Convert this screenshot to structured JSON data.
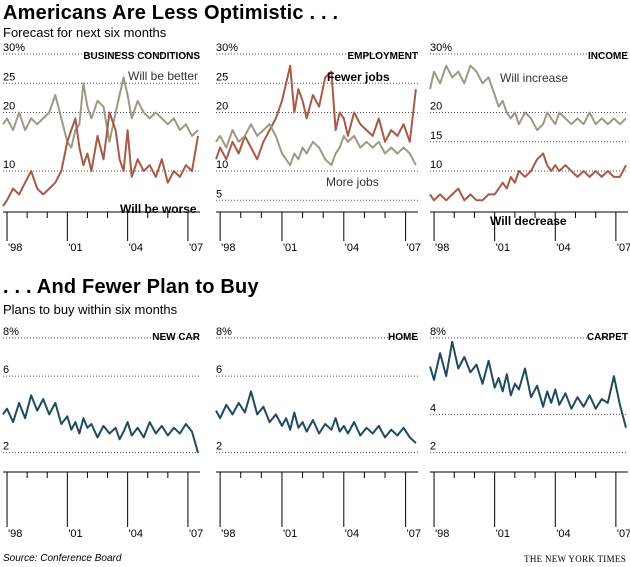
{
  "page": {
    "headline1": "Americans Are Less Optimistic . . .",
    "subhead1": "Forecast for next six months",
    "headline2": ". . . And Fewer Plan to Buy",
    "subhead2": "Plans to buy within six months",
    "source": "Source: Conference Board",
    "credit": "THE NEW YORK TIMES"
  },
  "colors": {
    "gray": "#9c9a86",
    "rust": "#a65a48",
    "teal": "#1e4c5e",
    "grid": "#555555"
  },
  "chart_data": [
    {
      "id": "business",
      "type": "line",
      "title": "BUSINESS CONDITIONS",
      "y_ticks": [
        "30%",
        "25",
        "20",
        "10"
      ],
      "y_tick_values": [
        30,
        25,
        20,
        10
      ],
      "ylim": [
        3,
        30
      ],
      "x_ticks": [
        "'98",
        "'01",
        "'04",
        "'07"
      ],
      "x_tick_values": [
        1998,
        2001,
        2004,
        2007
      ],
      "xlim": [
        1997.8,
        2007.6
      ],
      "series": [
        {
          "name": "Will be better",
          "color": "gray",
          "x": [
            1997.8,
            1998.0,
            1998.3,
            1998.6,
            1998.9,
            1999.2,
            1999.5,
            1999.8,
            2000.1,
            2000.4,
            2000.7,
            2001.0,
            2001.2,
            2001.4,
            2001.6,
            2001.8,
            2002.0,
            2002.2,
            2002.5,
            2002.8,
            2003.1,
            2003.4,
            2003.6,
            2003.8,
            2004.0,
            2004.2,
            2004.5,
            2004.8,
            2005.1,
            2005.4,
            2005.7,
            2006.0,
            2006.3,
            2006.6,
            2006.9,
            2007.2,
            2007.5
          ],
          "values": [
            18,
            19,
            17,
            20,
            17,
            19,
            18,
            19,
            20,
            23,
            19,
            15,
            14,
            17,
            18,
            25,
            21,
            19,
            22,
            21,
            15,
            20,
            23,
            26,
            23,
            19,
            22,
            20,
            19,
            20,
            19,
            18,
            19,
            17,
            18,
            16,
            17
          ]
        },
        {
          "name": "Will be worse",
          "color": "rust",
          "x": [
            1997.8,
            1998.0,
            1998.3,
            1998.6,
            1998.9,
            1999.2,
            1999.5,
            1999.8,
            2000.1,
            2000.4,
            2000.7,
            2001.0,
            2001.2,
            2001.4,
            2001.6,
            2001.8,
            2002.0,
            2002.2,
            2002.5,
            2002.8,
            2003.1,
            2003.4,
            2003.6,
            2003.8,
            2004.0,
            2004.2,
            2004.5,
            2004.8,
            2005.1,
            2005.4,
            2005.7,
            2006.0,
            2006.3,
            2006.6,
            2006.9,
            2007.2,
            2007.5
          ],
          "values": [
            4,
            5,
            7,
            6,
            8,
            10,
            7,
            6,
            7,
            8,
            10,
            15,
            17,
            19,
            14,
            11,
            13,
            10,
            16,
            12,
            20,
            17,
            12,
            10,
            17,
            9,
            12,
            10,
            11,
            9,
            12,
            8,
            10,
            9,
            11,
            10,
            16
          ]
        }
      ],
      "annotations": [
        {
          "text": "Will be better",
          "bold": false
        },
        {
          "text": "Will be worse",
          "bold": true
        }
      ]
    },
    {
      "id": "employment",
      "type": "line",
      "title": "EMPLOYMENT",
      "y_ticks": [
        "30%",
        "25",
        "20",
        "10",
        "5"
      ],
      "y_tick_values": [
        30,
        25,
        20,
        10,
        5
      ],
      "ylim": [
        3,
        30
      ],
      "x_ticks": [
        "'98",
        "'01",
        "'04",
        "'07"
      ],
      "x_tick_values": [
        1998,
        2001,
        2004,
        2007
      ],
      "xlim": [
        1997.8,
        2007.6
      ],
      "series": [
        {
          "name": "Fewer jobs",
          "color": "rust",
          "x": [
            1997.8,
            1998.0,
            1998.3,
            1998.6,
            1998.9,
            1999.2,
            1999.5,
            1999.8,
            2000.1,
            2000.4,
            2000.7,
            2001.0,
            2001.2,
            2001.4,
            2001.6,
            2001.8,
            2002.0,
            2002.2,
            2002.5,
            2002.8,
            2003.1,
            2003.4,
            2003.6,
            2003.8,
            2004.0,
            2004.2,
            2004.5,
            2004.8,
            2005.1,
            2005.4,
            2005.7,
            2006.0,
            2006.3,
            2006.6,
            2006.9,
            2007.2,
            2007.5
          ],
          "values": [
            12,
            14,
            12,
            15,
            13,
            16,
            14,
            12,
            15,
            17,
            19,
            22,
            25,
            28,
            20,
            24,
            22,
            19,
            23,
            21,
            26,
            27,
            17,
            20,
            19,
            16,
            20,
            18,
            17,
            16,
            19,
            15,
            17,
            16,
            18,
            15,
            24
          ]
        },
        {
          "name": "More jobs",
          "color": "gray",
          "x": [
            1997.8,
            1998.0,
            1998.3,
            1998.6,
            1998.9,
            1999.2,
            1999.5,
            1999.8,
            2000.1,
            2000.4,
            2000.7,
            2001.0,
            2001.2,
            2001.4,
            2001.6,
            2001.8,
            2002.0,
            2002.2,
            2002.5,
            2002.8,
            2003.1,
            2003.4,
            2003.6,
            2003.8,
            2004.0,
            2004.2,
            2004.5,
            2004.8,
            2005.1,
            2005.4,
            2005.7,
            2006.0,
            2006.3,
            2006.6,
            2006.9,
            2007.2,
            2007.5
          ],
          "values": [
            15,
            16,
            14,
            17,
            15,
            16,
            18,
            16,
            17,
            18,
            16,
            13,
            12,
            11,
            13,
            12,
            14,
            13,
            15,
            14,
            12,
            11,
            13,
            14,
            16,
            15,
            16,
            14,
            15,
            14,
            15,
            13,
            14,
            13,
            14,
            13,
            11
          ]
        }
      ],
      "annotations": [
        {
          "text": "Fewer jobs",
          "bold": true
        },
        {
          "text": "More jobs",
          "bold": false
        }
      ]
    },
    {
      "id": "income",
      "type": "line",
      "title": "INCOME",
      "y_ticks": [
        "30%",
        "20",
        "15",
        "10"
      ],
      "y_tick_values": [
        30,
        20,
        15,
        10
      ],
      "ylim": [
        3,
        30
      ],
      "x_ticks": [
        "'98",
        "'01",
        "'04",
        "'07"
      ],
      "x_tick_values": [
        1998,
        2001,
        2004,
        2007
      ],
      "xlim": [
        1997.8,
        2007.6
      ],
      "series": [
        {
          "name": "Will increase",
          "color": "gray",
          "x": [
            1997.8,
            1998.0,
            1998.3,
            1998.6,
            1998.9,
            1999.2,
            1999.5,
            1999.8,
            2000.1,
            2000.4,
            2000.7,
            2001.0,
            2001.2,
            2001.4,
            2001.6,
            2001.8,
            2002.0,
            2002.2,
            2002.5,
            2002.8,
            2003.1,
            2003.4,
            2003.6,
            2003.8,
            2004.0,
            2004.2,
            2004.5,
            2004.8,
            2005.1,
            2005.4,
            2005.7,
            2006.0,
            2006.3,
            2006.6,
            2006.9,
            2007.2,
            2007.5
          ],
          "values": [
            24,
            27,
            25,
            28,
            26,
            27,
            25,
            28,
            27,
            25,
            26,
            23,
            21,
            22,
            20,
            19,
            20,
            18,
            20,
            19,
            17,
            18,
            20,
            19,
            18,
            20,
            19,
            18,
            19,
            18,
            20,
            18,
            19,
            18,
            19,
            18,
            19
          ]
        },
        {
          "name": "Will decrease",
          "color": "rust",
          "x": [
            1997.8,
            1998.0,
            1998.3,
            1998.6,
            1998.9,
            1999.2,
            1999.5,
            1999.8,
            2000.1,
            2000.4,
            2000.7,
            2001.0,
            2001.2,
            2001.4,
            2001.6,
            2001.8,
            2002.0,
            2002.2,
            2002.5,
            2002.8,
            2003.1,
            2003.4,
            2003.6,
            2003.8,
            2004.0,
            2004.2,
            2004.5,
            2004.8,
            2005.1,
            2005.4,
            2005.7,
            2006.0,
            2006.3,
            2006.6,
            2006.9,
            2007.2,
            2007.5
          ],
          "values": [
            6,
            5,
            6,
            5,
            6,
            7,
            5,
            6,
            5,
            5,
            6,
            6,
            7,
            8,
            7,
            9,
            8,
            10,
            9,
            10,
            12,
            13,
            11,
            10,
            11,
            10,
            11,
            10,
            9,
            10,
            9,
            10,
            9,
            10,
            9,
            9,
            11
          ]
        }
      ],
      "annotations": [
        {
          "text": "Will increase",
          "bold": false
        },
        {
          "text": "Will decrease",
          "bold": true
        }
      ]
    },
    {
      "id": "newcar",
      "type": "line",
      "title": "NEW CAR",
      "y_ticks": [
        "8%",
        "6",
        "2"
      ],
      "y_tick_values": [
        8,
        6,
        2
      ],
      "ylim": [
        1.2,
        8.2
      ],
      "x_ticks": [
        "'98",
        "'01",
        "'04",
        "'07"
      ],
      "x_tick_values": [
        1998,
        2001,
        2004,
        2007
      ],
      "xlim": [
        1997.8,
        2007.6
      ],
      "series": [
        {
          "name": "New car",
          "color": "teal",
          "x": [
            1997.8,
            1998.0,
            1998.3,
            1998.6,
            1998.9,
            1999.2,
            1999.5,
            1999.8,
            2000.1,
            2000.4,
            2000.7,
            2001.0,
            2001.2,
            2001.4,
            2001.6,
            2001.8,
            2002.0,
            2002.2,
            2002.5,
            2002.8,
            2003.1,
            2003.4,
            2003.6,
            2003.8,
            2004.0,
            2004.2,
            2004.5,
            2004.8,
            2005.1,
            2005.4,
            2005.7,
            2006.0,
            2006.3,
            2006.6,
            2006.9,
            2007.2,
            2007.5
          ],
          "values": [
            4.0,
            4.3,
            3.6,
            4.6,
            3.8,
            5.0,
            4.2,
            4.8,
            4.0,
            4.6,
            3.5,
            3.9,
            3.2,
            3.6,
            3.0,
            3.8,
            3.3,
            3.5,
            2.8,
            3.4,
            3.0,
            3.3,
            2.7,
            3.1,
            3.6,
            2.9,
            3.3,
            2.8,
            3.6,
            3.0,
            3.4,
            2.9,
            3.3,
            3.0,
            3.5,
            3.1,
            2.0
          ]
        }
      ]
    },
    {
      "id": "home",
      "type": "line",
      "title": "HOME",
      "y_ticks": [
        "8%",
        "6",
        "2"
      ],
      "y_tick_values": [
        8,
        6,
        2
      ],
      "ylim": [
        1.2,
        8.2
      ],
      "x_ticks": [
        "'98",
        "'01",
        "'04",
        "'07"
      ],
      "x_tick_values": [
        1998,
        2001,
        2004,
        2007
      ],
      "xlim": [
        1997.8,
        2007.6
      ],
      "series": [
        {
          "name": "Home",
          "color": "teal",
          "x": [
            1997.8,
            1998.0,
            1998.3,
            1998.6,
            1998.9,
            1999.2,
            1999.5,
            1999.8,
            2000.1,
            2000.4,
            2000.7,
            2001.0,
            2001.2,
            2001.4,
            2001.6,
            2001.8,
            2002.0,
            2002.2,
            2002.5,
            2002.8,
            2003.1,
            2003.4,
            2003.6,
            2003.8,
            2004.0,
            2004.2,
            2004.5,
            2004.8,
            2005.1,
            2005.4,
            2005.7,
            2006.0,
            2006.3,
            2006.6,
            2006.9,
            2007.2,
            2007.5
          ],
          "values": [
            4.2,
            3.8,
            4.5,
            4.0,
            4.6,
            4.1,
            5.2,
            4.0,
            4.4,
            3.6,
            4.0,
            3.4,
            3.8,
            3.2,
            4.1,
            3.3,
            3.6,
            3.1,
            3.7,
            3.0,
            3.5,
            3.2,
            3.8,
            3.1,
            3.4,
            3.0,
            3.6,
            2.9,
            3.3,
            3.0,
            3.4,
            2.8,
            3.2,
            2.9,
            3.3,
            2.8,
            2.5
          ]
        }
      ]
    },
    {
      "id": "carpet",
      "type": "line",
      "title": "CARPET",
      "y_ticks": [
        "8%",
        "4",
        "2"
      ],
      "y_tick_values": [
        8,
        4,
        2
      ],
      "ylim": [
        1.2,
        8.2
      ],
      "x_ticks": [
        "'98",
        "'01",
        "'04",
        "'07"
      ],
      "x_tick_values": [
        1998,
        2001,
        2004,
        2007
      ],
      "xlim": [
        1997.8,
        2007.6
      ],
      "series": [
        {
          "name": "Carpet",
          "color": "teal",
          "x": [
            1997.8,
            1998.0,
            1998.3,
            1998.6,
            1998.9,
            1999.2,
            1999.5,
            1999.8,
            2000.1,
            2000.4,
            2000.7,
            2001.0,
            2001.2,
            2001.4,
            2001.6,
            2001.8,
            2002.0,
            2002.2,
            2002.5,
            2002.8,
            2003.1,
            2003.4,
            2003.6,
            2003.8,
            2004.0,
            2004.2,
            2004.5,
            2004.8,
            2005.1,
            2005.4,
            2005.7,
            2006.0,
            2006.3,
            2006.6,
            2006.9,
            2007.2,
            2007.5
          ],
          "values": [
            6.5,
            5.8,
            7.2,
            6.0,
            7.8,
            6.4,
            7.0,
            6.2,
            6.6,
            5.6,
            6.8,
            5.4,
            5.9,
            5.2,
            6.1,
            5.0,
            5.6,
            5.3,
            6.4,
            4.9,
            5.5,
            4.4,
            5.2,
            4.6,
            5.3,
            4.5,
            5.1,
            4.3,
            4.9,
            4.4,
            5.0,
            4.3,
            4.8,
            4.6,
            6.0,
            4.5,
            3.3
          ]
        }
      ]
    }
  ]
}
